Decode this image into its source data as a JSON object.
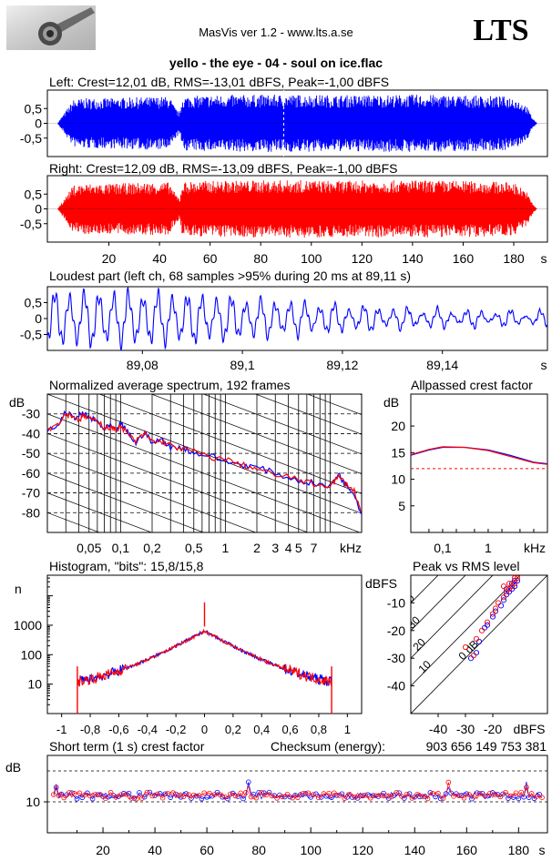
{
  "header": {
    "app_title": "MasVis ver 1.2 - www.lts.a.se",
    "brand": "LTS",
    "logo_icon": "audio-cable-jack-icon"
  },
  "file_title": "yello - the eye - 04 - soul on ice.flac",
  "colors": {
    "left": "#0000ff",
    "right": "#ff0000",
    "grid": "#000000"
  },
  "chart_data": [
    {
      "id": "left",
      "type": "area",
      "title": "Left: Crest=12,01 dB, RMS=-13,01 dBFS, Peak=-1,00 dBFS",
      "y_ticks": [
        "0,5",
        "0",
        "-0,5"
      ],
      "ylim": [
        -1,
        1
      ],
      "xlim": [
        0,
        189
      ],
      "cursor_x": 89.11,
      "envelope": [
        [
          0,
          0.05
        ],
        [
          2,
          0.3
        ],
        [
          4,
          0.55
        ],
        [
          6,
          0.8
        ],
        [
          10,
          0.85
        ],
        [
          20,
          0.85
        ],
        [
          30,
          0.88
        ],
        [
          40,
          0.9
        ],
        [
          44,
          0.9
        ],
        [
          46,
          0.55
        ],
        [
          48,
          0.35
        ],
        [
          49,
          0.92
        ],
        [
          60,
          0.95
        ],
        [
          80,
          0.97
        ],
        [
          90,
          0.97
        ],
        [
          100,
          0.97
        ],
        [
          110,
          0.95
        ],
        [
          120,
          0.96
        ],
        [
          140,
          0.97
        ],
        [
          160,
          0.95
        ],
        [
          170,
          0.93
        ],
        [
          180,
          0.9
        ],
        [
          185,
          0.6
        ],
        [
          187,
          0.25
        ],
        [
          189,
          0.02
        ]
      ]
    },
    {
      "id": "right",
      "type": "area",
      "title": "Right: Crest=12,09 dB, RMS=-13,09 dBFS, Peak=-1,00 dBFS",
      "y_ticks": [
        "0,5",
        "0",
        "-0,5"
      ],
      "ylim": [
        -1,
        1
      ],
      "xlim": [
        0,
        189
      ],
      "x_ticks": [
        "20",
        "40",
        "60",
        "80",
        "100",
        "120",
        "140",
        "160",
        "180"
      ],
      "x_unit": "s",
      "envelope": [
        [
          0,
          0.05
        ],
        [
          2,
          0.3
        ],
        [
          4,
          0.55
        ],
        [
          6,
          0.8
        ],
        [
          10,
          0.85
        ],
        [
          20,
          0.85
        ],
        [
          30,
          0.88
        ],
        [
          40,
          0.9
        ],
        [
          44,
          0.9
        ],
        [
          46,
          0.55
        ],
        [
          48,
          0.35
        ],
        [
          49,
          0.92
        ],
        [
          60,
          0.95
        ],
        [
          80,
          0.97
        ],
        [
          90,
          0.97
        ],
        [
          100,
          0.97
        ],
        [
          110,
          0.95
        ],
        [
          120,
          0.96
        ],
        [
          140,
          0.97
        ],
        [
          160,
          0.95
        ],
        [
          170,
          0.93
        ],
        [
          180,
          0.9
        ],
        [
          185,
          0.6
        ],
        [
          187,
          0.25
        ],
        [
          189,
          0.02
        ]
      ]
    },
    {
      "id": "loudest",
      "type": "line",
      "title": "Loudest part (left  ch, 68 samples >95% during 20 ms at 89,11 s)",
      "y_ticks": [
        "0,5",
        "0",
        "-0,5"
      ],
      "ylim": [
        -1,
        1
      ],
      "xlim": [
        89.061,
        89.161
      ],
      "x_ticks": [
        "89,08",
        "89,1",
        "89,12",
        "89,14"
      ],
      "x_unit": "s"
    },
    {
      "id": "spectrum",
      "type": "line",
      "title": "Normalized average spectrum, 192 frames",
      "ylabel": "dB",
      "y_ticks": [
        "-30",
        "-40",
        "-50",
        "-60",
        "-70",
        "-80"
      ],
      "ylim": [
        -90,
        -20
      ],
      "xlim": [
        0.02,
        20
      ],
      "x_scale": "log",
      "x_ticks": [
        "0,05",
        "0,1",
        "0,2",
        "0,5",
        "1",
        "2",
        "3",
        "4",
        "5",
        "7"
      ],
      "x_unit": "kHz",
      "series": [
        {
          "name": "left",
          "points": [
            [
              0.02,
              -39
            ],
            [
              0.025,
              -36
            ],
            [
              0.03,
              -29
            ],
            [
              0.035,
              -32
            ],
            [
              0.04,
              -31
            ],
            [
              0.045,
              -30
            ],
            [
              0.05,
              -32
            ],
            [
              0.06,
              -34
            ],
            [
              0.07,
              -38
            ],
            [
              0.08,
              -36
            ],
            [
              0.09,
              -39
            ],
            [
              0.1,
              -35
            ],
            [
              0.12,
              -40
            ],
            [
              0.14,
              -45
            ],
            [
              0.17,
              -39
            ],
            [
              0.2,
              -45
            ],
            [
              0.25,
              -43
            ],
            [
              0.3,
              -47
            ],
            [
              0.4,
              -47
            ],
            [
              0.5,
              -50
            ],
            [
              0.7,
              -51
            ],
            [
              1,
              -54
            ],
            [
              1.5,
              -56
            ],
            [
              2,
              -57
            ],
            [
              3,
              -60
            ],
            [
              5,
              -64
            ],
            [
              7,
              -65
            ],
            [
              10,
              -67
            ],
            [
              12,
              -60
            ],
            [
              14,
              -66
            ],
            [
              17,
              -70
            ],
            [
              20,
              -81
            ]
          ]
        },
        {
          "name": "right",
          "points": [
            [
              0.02,
              -38
            ],
            [
              0.025,
              -35
            ],
            [
              0.03,
              -30
            ],
            [
              0.035,
              -31
            ],
            [
              0.04,
              -33
            ],
            [
              0.045,
              -31
            ],
            [
              0.05,
              -33
            ],
            [
              0.06,
              -33
            ],
            [
              0.07,
              -37
            ],
            [
              0.08,
              -37
            ],
            [
              0.09,
              -38
            ],
            [
              0.1,
              -36
            ],
            [
              0.12,
              -41
            ],
            [
              0.14,
              -44
            ],
            [
              0.17,
              -40
            ],
            [
              0.2,
              -44
            ],
            [
              0.25,
              -44
            ],
            [
              0.3,
              -46
            ],
            [
              0.4,
              -48
            ],
            [
              0.5,
              -49
            ],
            [
              0.7,
              -52
            ],
            [
              1,
              -53
            ],
            [
              1.5,
              -56
            ],
            [
              2,
              -58
            ],
            [
              3,
              -61
            ],
            [
              5,
              -63
            ],
            [
              7,
              -66
            ],
            [
              10,
              -66
            ],
            [
              12,
              -62
            ],
            [
              14,
              -65
            ],
            [
              17,
              -69
            ],
            [
              20,
              -80
            ]
          ]
        }
      ]
    },
    {
      "id": "allpassed",
      "type": "line",
      "title": "Allpassed crest factor",
      "ylabel": "dB",
      "y_ticks": [
        "20",
        "15",
        "10",
        "5"
      ],
      "ylim": [
        0,
        26
      ],
      "xlim": [
        0.02,
        20
      ],
      "x_scale": "log",
      "x_ticks": [
        "0,1",
        "1",
        "kHz"
      ],
      "reference_db": 12,
      "series": [
        {
          "name": "left",
          "points": [
            [
              0.02,
              14.5
            ],
            [
              0.05,
              15.5
            ],
            [
              0.1,
              16
            ],
            [
              0.3,
              16
            ],
            [
              1,
              15.5
            ],
            [
              3,
              14.5
            ],
            [
              10,
              13.2
            ],
            [
              20,
              12.9
            ]
          ]
        },
        {
          "name": "right",
          "points": [
            [
              0.02,
              14.6
            ],
            [
              0.05,
              15.6
            ],
            [
              0.1,
              16.1
            ],
            [
              0.3,
              16
            ],
            [
              1,
              15.4
            ],
            [
              3,
              14.3
            ],
            [
              10,
              13.1
            ],
            [
              20,
              12.8
            ]
          ]
        }
      ]
    },
    {
      "id": "histogram",
      "type": "line",
      "title": "Histogram, \"bits\": 15,8/15,8",
      "ylabel": "n",
      "y_scale": "log",
      "y_ticks": [
        "1000",
        "100",
        "10"
      ],
      "ylim": [
        1,
        50000
      ],
      "xlim": [
        -1.1,
        1.1
      ],
      "x_ticks": [
        "-1",
        "-0,8",
        "-0,6",
        "-0,4",
        "-0,2",
        "0",
        "0,2",
        "0,4",
        "0,6",
        "0,8",
        "1"
      ],
      "clip_level": 0.89
    },
    {
      "id": "peak-vs-rms",
      "type": "scatter",
      "title": "Peak vs RMS level",
      "ylabel": "dBFS",
      "y_ticks": [
        "-10",
        "-20",
        "-30",
        "-40"
      ],
      "xlim": [
        -50,
        0
      ],
      "ylim": [
        -50,
        0
      ],
      "x_ticks": [
        "-40",
        "-30",
        "-20",
        "dBFS"
      ],
      "crest_lines": [
        "0 dB",
        "10",
        "20",
        "30",
        "40"
      ],
      "points_left": [
        [
          -28,
          -30
        ],
        [
          -26,
          -28
        ],
        [
          -25,
          -24
        ],
        [
          -23,
          -19
        ],
        [
          -22,
          -18
        ],
        [
          -20,
          -15
        ],
        [
          -19,
          -13
        ],
        [
          -17,
          -11
        ],
        [
          -16,
          -9
        ],
        [
          -15,
          -7
        ],
        [
          -14,
          -6
        ],
        [
          -13,
          -5
        ],
        [
          -12,
          -4
        ],
        [
          -15,
          -5
        ],
        [
          -13,
          -3
        ],
        [
          -12,
          -2
        ],
        [
          -11,
          -2
        ]
      ],
      "points_right": [
        [
          -30,
          -26
        ],
        [
          -27,
          -29
        ],
        [
          -26,
          -23
        ],
        [
          -24,
          -20
        ],
        [
          -22,
          -17
        ],
        [
          -20,
          -14
        ],
        [
          -19,
          -12
        ],
        [
          -18,
          -10
        ],
        [
          -16,
          -8
        ],
        [
          -15,
          -6
        ],
        [
          -14,
          -5
        ],
        [
          -13,
          -4
        ],
        [
          -12,
          -3
        ],
        [
          -16,
          -4
        ],
        [
          -14,
          -3
        ],
        [
          -12,
          -1
        ],
        [
          -11,
          -1
        ]
      ]
    },
    {
      "id": "short-term-crest",
      "type": "scatter",
      "title": "Short term (1 s) crest factor",
      "checksum_label": "Checksum (energy):",
      "checksum_value": "903 656 149 753 381",
      "ylabel": "dB",
      "y_ticks": [
        "10"
      ],
      "ylim": [
        0,
        25
      ],
      "xlim": [
        0,
        189
      ],
      "x_ticks": [
        "20",
        "40",
        "60",
        "80",
        "100",
        "120",
        "140",
        "160",
        "180"
      ],
      "x_unit": "s",
      "ref_lines": [
        20,
        10
      ]
    }
  ]
}
